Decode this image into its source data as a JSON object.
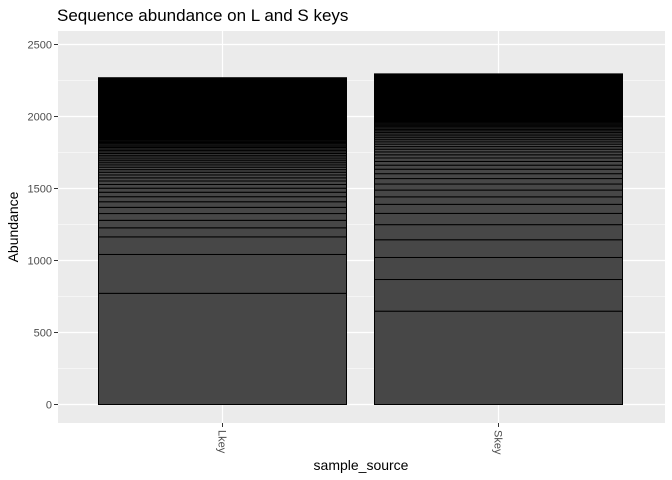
{
  "chart_data": {
    "type": "bar",
    "stacked": true,
    "title": "Sequence abundance on L and S keys",
    "xlabel": "sample_source",
    "ylabel": "Abundance",
    "categories": [
      "Lkey",
      "Skey"
    ],
    "ylim": [
      0,
      2600
    ],
    "yticks": [
      0,
      500,
      1000,
      1500,
      2000,
      2500
    ],
    "ytick_labels": [
      "0",
      "500",
      "1000",
      "1500",
      "2000",
      "2500"
    ],
    "grid": true,
    "legend": "none",
    "bar_fill": "#474747",
    "bar_outline": "#000000",
    "panel_background": "#ebebeb",
    "grid_color": "#ffffff",
    "segments": {
      "Lkey": [
        772,
        270,
        122,
        63,
        52,
        47,
        43,
        39,
        35,
        31,
        28,
        26,
        24,
        22,
        20,
        19,
        18,
        17,
        16,
        15,
        14,
        13,
        13,
        12,
        12,
        11,
        11,
        10,
        10,
        9,
        9,
        9,
        8,
        8,
        8,
        7,
        7,
        7,
        7,
        6,
        6,
        6,
        6,
        5,
        5,
        5,
        5,
        5,
        4,
        4,
        4,
        4,
        4,
        4,
        3,
        3,
        3,
        3,
        3,
        3,
        3,
        3,
        3,
        3,
        2,
        2,
        2,
        2,
        2,
        2,
        2,
        2,
        2,
        2,
        2,
        2,
        2,
        2,
        2,
        2,
        2,
        2,
        2,
        2,
        2,
        2,
        2,
        2,
        2,
        2,
        2,
        2,
        2,
        2,
        2,
        2,
        2,
        2,
        2,
        2,
        1,
        1,
        1,
        1,
        1,
        1,
        1,
        1,
        1,
        1,
        1,
        1,
        1,
        1,
        1,
        1,
        1,
        1,
        1,
        1,
        1,
        1,
        1,
        1,
        1,
        1,
        1,
        1,
        1,
        1,
        1,
        1,
        1,
        1,
        1,
        1,
        1,
        1,
        1,
        1,
        1,
        1,
        1,
        1,
        1,
        1,
        1,
        1,
        1,
        1,
        1,
        1,
        1,
        1,
        1,
        1,
        1,
        1,
        1,
        1,
        1,
        1,
        1,
        1,
        1,
        1,
        1,
        1,
        1,
        1,
        1,
        1,
        1,
        1,
        1,
        1,
        1,
        1,
        1,
        1,
        1,
        1,
        1,
        1,
        1,
        1,
        1,
        1,
        1,
        1,
        1,
        1,
        1,
        1,
        1,
        1,
        1,
        1,
        1,
        1,
        1,
        1,
        1,
        1,
        1,
        1,
        1,
        1,
        1,
        1,
        1,
        1,
        1,
        1,
        1,
        1,
        1,
        1,
        1,
        1,
        1,
        1,
        1,
        1,
        1,
        1,
        1,
        1,
        1,
        1,
        1,
        1,
        1,
        1,
        1,
        1,
        1,
        1,
        1,
        1,
        1,
        1,
        1,
        1,
        1,
        1,
        1,
        1,
        1,
        1,
        1,
        1,
        1,
        1,
        1,
        1,
        1,
        1,
        1,
        1,
        1,
        1,
        1,
        1,
        1,
        1,
        1,
        1,
        1,
        1,
        1,
        1,
        1,
        1,
        1,
        1,
        1,
        1,
        1,
        1,
        1,
        1,
        1,
        1,
        1,
        1,
        1,
        1,
        1,
        1,
        1,
        1,
        1,
        1,
        1,
        1,
        1,
        1,
        1,
        1,
        1,
        1,
        1,
        1,
        1,
        1,
        1,
        1,
        1,
        1,
        1,
        1,
        1,
        1,
        1,
        1,
        1,
        1,
        1,
        1,
        1,
        1,
        1,
        1,
        1,
        1,
        1,
        1,
        1,
        1
      ],
      "Skey": [
        648,
        220,
        153,
        123,
        105,
        78,
        63,
        52,
        47,
        42,
        38,
        34,
        31,
        28,
        26,
        24,
        22,
        20,
        19,
        18,
        17,
        16,
        15,
        14,
        13,
        12,
        12,
        11,
        10,
        10,
        9,
        9,
        8,
        8,
        8,
        7,
        7,
        7,
        6,
        6,
        6,
        6,
        5,
        5,
        5,
        5,
        5,
        4,
        4,
        4,
        4,
        4,
        4,
        3,
        3,
        3,
        3,
        3,
        3,
        3,
        3,
        3,
        3,
        3,
        2,
        2,
        2,
        2,
        2,
        2,
        2,
        2,
        2,
        2,
        2,
        2,
        2,
        2,
        2,
        2,
        2,
        2,
        2,
        2,
        2,
        2,
        2,
        2,
        2,
        2,
        2,
        2,
        2,
        2,
        2,
        2,
        2,
        2,
        2,
        2,
        2,
        2,
        2,
        2,
        1,
        1,
        1,
        1,
        1,
        1,
        1,
        1,
        1,
        1,
        1,
        1,
        1,
        1,
        1,
        1,
        1,
        1,
        1,
        1,
        1,
        1,
        1,
        1,
        1,
        1,
        1,
        1,
        1,
        1,
        1,
        1,
        1,
        1,
        1,
        1,
        1,
        1,
        1,
        1,
        1,
        1,
        1,
        1,
        1,
        1,
        1,
        1,
        1,
        1,
        1,
        1,
        1,
        1,
        1,
        1,
        1,
        1,
        1,
        1,
        1,
        1,
        1,
        1,
        1,
        1,
        1,
        1,
        1,
        1,
        1,
        1,
        1,
        1,
        1,
        1,
        1,
        1,
        1,
        1,
        1,
        1,
        1,
        1,
        1,
        1,
        1,
        1,
        1,
        1,
        1,
        1,
        1,
        1,
        1,
        1,
        1,
        1,
        1,
        1,
        1,
        1,
        1,
        1,
        1,
        1,
        1,
        1,
        1,
        1,
        1,
        1,
        1,
        1,
        1,
        1,
        1,
        1,
        1,
        1,
        1,
        1,
        1,
        1,
        1,
        1
      ]
    }
  }
}
